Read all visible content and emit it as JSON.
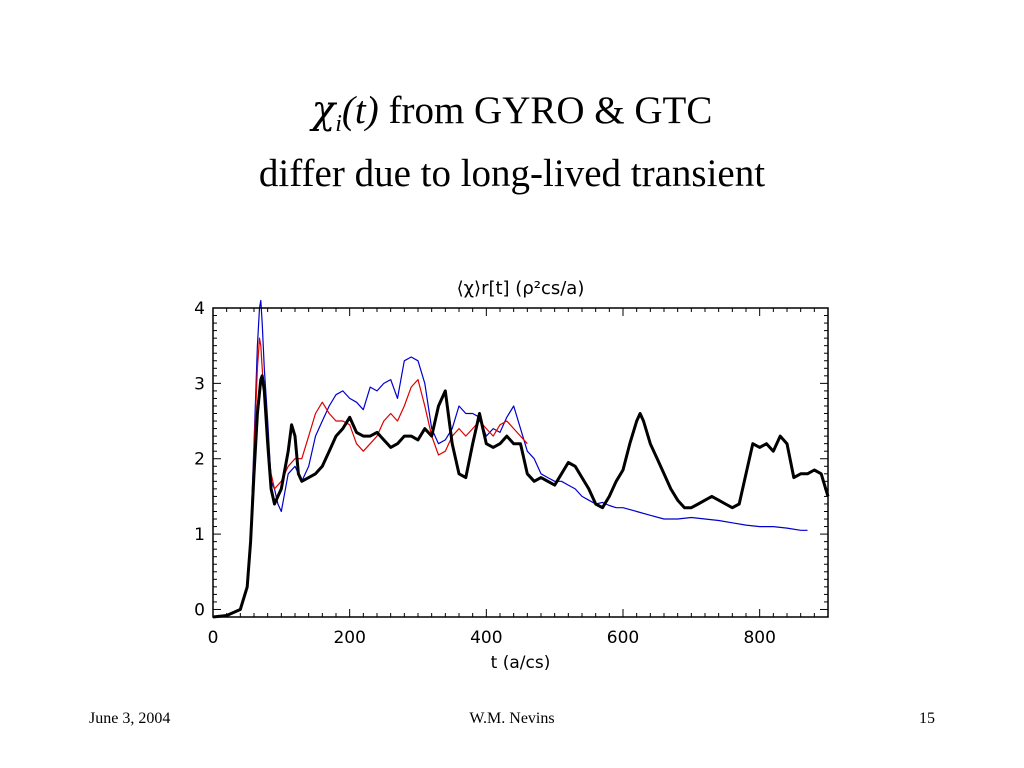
{
  "slide": {
    "title_chi": "χ",
    "title_sub": "i",
    "title_t": "(t)",
    "title_rest": " from GYRO & GTC",
    "title_line2": "differ due to long-lived transient"
  },
  "footer": {
    "date": "June 3, 2004",
    "author": "W.M. Nevins",
    "page": "15"
  },
  "chart_data": {
    "type": "line",
    "title": "⟨χ⟩r[t]  (ρ²cs/a)",
    "xlabel": "t (a/cs)",
    "ylabel": "",
    "xlim": [
      0,
      900
    ],
    "ylim": [
      -0.1,
      4
    ],
    "xticks": [
      0,
      200,
      400,
      600,
      800
    ],
    "yticks": [
      0,
      1,
      2,
      3,
      4
    ],
    "grid": false,
    "legend": "none",
    "series": [
      {
        "color": "#0000cc",
        "stroke": 1.2,
        "x": [
          0,
          20,
          40,
          50,
          55,
          60,
          65,
          68,
          70,
          72,
          75,
          80,
          85,
          90,
          95,
          100,
          110,
          120,
          130,
          140,
          150,
          160,
          170,
          180,
          190,
          200,
          210,
          220,
          230,
          240,
          250,
          260,
          270,
          280,
          290,
          300,
          310,
          320,
          330,
          340,
          350,
          360,
          370,
          380,
          390,
          400,
          410,
          420,
          430,
          440,
          450,
          460,
          470,
          480,
          490,
          500,
          510,
          520,
          530,
          540,
          550,
          560,
          570,
          580,
          590,
          600,
          620,
          640,
          660,
          680,
          700,
          720,
          740,
          760,
          780,
          800,
          820,
          840,
          860,
          870
        ],
        "y": [
          -0.1,
          -0.08,
          0.0,
          0.3,
          1.0,
          2.2,
          3.5,
          4.0,
          4.1,
          3.8,
          3.2,
          2.5,
          1.7,
          1.6,
          1.4,
          1.3,
          1.8,
          1.9,
          1.7,
          1.9,
          2.3,
          2.5,
          2.7,
          2.85,
          2.9,
          2.8,
          2.75,
          2.65,
          2.95,
          2.9,
          3.0,
          3.05,
          2.8,
          3.3,
          3.35,
          3.3,
          3.0,
          2.4,
          2.2,
          2.25,
          2.4,
          2.7,
          2.6,
          2.6,
          2.55,
          2.3,
          2.4,
          2.35,
          2.55,
          2.7,
          2.4,
          2.1,
          2.0,
          1.8,
          1.75,
          1.7,
          1.7,
          1.65,
          1.6,
          1.5,
          1.45,
          1.4,
          1.42,
          1.38,
          1.35,
          1.35,
          1.3,
          1.25,
          1.2,
          1.2,
          1.22,
          1.2,
          1.18,
          1.15,
          1.12,
          1.1,
          1.1,
          1.08,
          1.05,
          1.05
        ]
      },
      {
        "color": "#dd0000",
        "stroke": 1.2,
        "x": [
          0,
          20,
          40,
          50,
          55,
          60,
          65,
          68,
          70,
          72,
          75,
          80,
          85,
          90,
          100,
          110,
          120,
          130,
          140,
          150,
          160,
          170,
          180,
          190,
          200,
          210,
          220,
          230,
          240,
          250,
          260,
          270,
          280,
          290,
          300,
          310,
          320,
          330,
          340,
          350,
          360,
          370,
          380,
          390,
          400,
          410,
          420,
          430,
          440,
          450,
          460
        ],
        "y": [
          -0.1,
          -0.08,
          0.0,
          0.3,
          1.0,
          2.1,
          3.2,
          3.6,
          3.5,
          3.2,
          2.8,
          2.2,
          1.8,
          1.6,
          1.7,
          1.9,
          2.0,
          2.0,
          2.3,
          2.6,
          2.75,
          2.6,
          2.5,
          2.5,
          2.45,
          2.2,
          2.1,
          2.2,
          2.3,
          2.5,
          2.6,
          2.5,
          2.7,
          2.95,
          3.05,
          2.7,
          2.3,
          2.05,
          2.1,
          2.3,
          2.4,
          2.3,
          2.4,
          2.5,
          2.4,
          2.3,
          2.45,
          2.5,
          2.4,
          2.3,
          2.2
        ]
      },
      {
        "color": "#000000",
        "stroke": 3,
        "x": [
          0,
          20,
          40,
          50,
          55,
          60,
          65,
          70,
          72,
          75,
          80,
          85,
          90,
          95,
          100,
          110,
          115,
          120,
          125,
          130,
          140,
          150,
          160,
          170,
          180,
          190,
          200,
          210,
          220,
          230,
          240,
          250,
          260,
          270,
          280,
          290,
          300,
          310,
          320,
          330,
          340,
          350,
          360,
          370,
          380,
          390,
          400,
          410,
          420,
          430,
          440,
          450,
          460,
          470,
          480,
          490,
          500,
          510,
          520,
          530,
          540,
          550,
          560,
          570,
          580,
          590,
          600,
          610,
          620,
          625,
          630,
          640,
          650,
          660,
          670,
          680,
          690,
          700,
          710,
          720,
          730,
          740,
          750,
          760,
          770,
          780,
          790,
          800,
          810,
          820,
          830,
          840,
          850,
          860,
          870,
          880,
          890,
          900
        ],
        "y": [
          -0.1,
          -0.08,
          0.0,
          0.3,
          0.9,
          1.8,
          2.6,
          3.05,
          3.1,
          2.9,
          2.2,
          1.6,
          1.4,
          1.5,
          1.6,
          2.1,
          2.45,
          2.3,
          1.8,
          1.7,
          1.75,
          1.8,
          1.9,
          2.1,
          2.3,
          2.4,
          2.55,
          2.35,
          2.3,
          2.3,
          2.35,
          2.25,
          2.15,
          2.2,
          2.3,
          2.3,
          2.25,
          2.4,
          2.3,
          2.7,
          2.9,
          2.2,
          1.8,
          1.75,
          2.2,
          2.6,
          2.2,
          2.15,
          2.2,
          2.3,
          2.2,
          2.2,
          1.8,
          1.7,
          1.75,
          1.7,
          1.65,
          1.8,
          1.95,
          1.9,
          1.75,
          1.6,
          1.4,
          1.35,
          1.5,
          1.7,
          1.85,
          2.2,
          2.5,
          2.6,
          2.5,
          2.2,
          2.0,
          1.8,
          1.6,
          1.45,
          1.35,
          1.35,
          1.4,
          1.45,
          1.5,
          1.45,
          1.4,
          1.35,
          1.4,
          1.8,
          2.2,
          2.15,
          2.2,
          2.1,
          2.3,
          2.2,
          1.75,
          1.8,
          1.8,
          1.85,
          1.8,
          1.5
        ]
      }
    ]
  }
}
